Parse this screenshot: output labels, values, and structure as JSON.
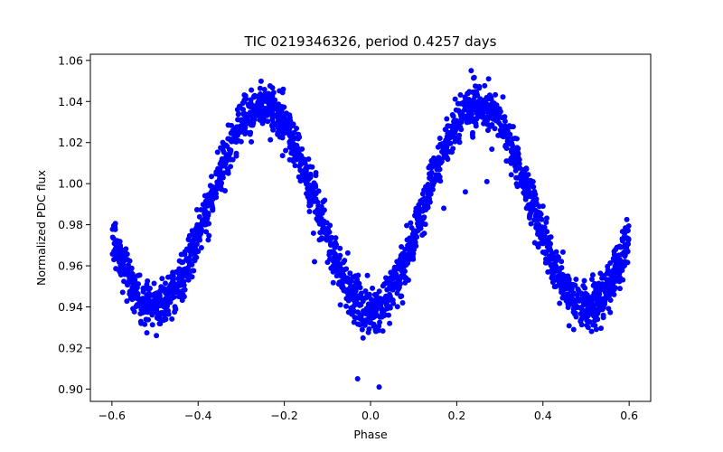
{
  "chart_data": {
    "type": "scatter",
    "title": "TIC 0219346326, period 0.4257 days",
    "xlabel": "Phase",
    "ylabel": "Normalized PDC flux",
    "xlim": [
      -0.65,
      0.65
    ],
    "ylim": [
      0.894,
      1.063
    ],
    "xticks": [
      -0.6,
      -0.4,
      -0.2,
      0.0,
      0.2,
      0.4,
      0.6
    ],
    "xtick_labels": [
      "−0.6",
      "−0.4",
      "−0.2",
      "0.0",
      "0.2",
      "0.4",
      "0.6"
    ],
    "yticks": [
      0.9,
      0.92,
      0.94,
      0.96,
      0.98,
      1.0,
      1.02,
      1.04,
      1.06
    ],
    "ytick_labels": [
      "0.90",
      "0.92",
      "0.94",
      "0.96",
      "0.98",
      "1.00",
      "1.02",
      "1.04",
      "1.06"
    ],
    "marker_color": "#0000ff",
    "series": [
      {
        "name": "PDC flux",
        "model": {
          "mean": 0.99,
          "primary_depth": 0.052,
          "secondary_depth": 0.05,
          "cos_amp": 0.0485,
          "primary_eclipse_phase": 0.0,
          "secondary_eclipse_phase": 0.5,
          "phase_range": [
            -0.6,
            0.6
          ],
          "scatter": 0.0055,
          "n_points": 2400
        },
        "outliers": [
          {
            "x": -0.03,
            "y": 0.905
          },
          {
            "x": 0.02,
            "y": 0.901
          },
          {
            "x": -0.13,
            "y": 0.962
          },
          {
            "x": -0.07,
            "y": 0.941
          },
          {
            "x": 0.07,
            "y": 0.945
          },
          {
            "x": 0.17,
            "y": 0.988
          },
          {
            "x": 0.22,
            "y": 0.996
          },
          {
            "x": 0.27,
            "y": 1.001
          },
          {
            "x": 0.12,
            "y": 0.975
          },
          {
            "x": 0.4,
            "y": 0.989
          },
          {
            "x": -0.33,
            "y": 1.005
          },
          {
            "x": -0.39,
            "y": 0.98
          }
        ]
      }
    ]
  }
}
